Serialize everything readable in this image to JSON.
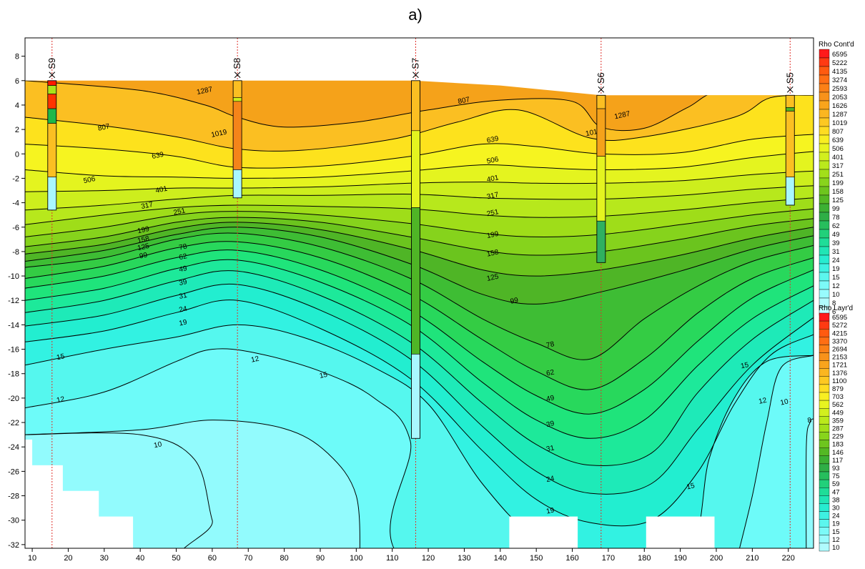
{
  "figure_label": "a)",
  "chart_data": {
    "type": "heatmap",
    "title": "",
    "xlabel": "",
    "ylabel": "",
    "xlim": [
      8,
      227
    ],
    "ylim": [
      -32.3,
      9.5
    ],
    "x_ticks": [
      10,
      20,
      30,
      40,
      50,
      60,
      70,
      80,
      90,
      100,
      110,
      120,
      130,
      140,
      150,
      160,
      170,
      180,
      190,
      200,
      210,
      220
    ],
    "y_ticks": [
      8,
      6,
      4,
      2,
      0,
      -2,
      -4,
      -6,
      -8,
      -10,
      -12,
      -14,
      -16,
      -18,
      -20,
      -22,
      -24,
      -26,
      -28,
      -30,
      -32
    ],
    "grid": false,
    "legend_placement": "right",
    "surface_profile": [
      [
        8,
        6.0
      ],
      [
        66,
        6.0
      ],
      [
        116,
        6.0
      ],
      [
        140,
        5.6
      ],
      [
        168,
        4.8
      ],
      [
        227,
        4.8
      ]
    ],
    "contour_levels": [
      {
        "value": 1287,
        "color": "#f5a21a"
      },
      {
        "value": 1019,
        "color": "#fbbf22"
      },
      {
        "value": 807,
        "color": "#fde21d"
      },
      {
        "value": 639,
        "color": "#f6f420"
      },
      {
        "value": 506,
        "color": "#e4f41f"
      },
      {
        "value": 401,
        "color": "#cdee1d"
      },
      {
        "value": 317,
        "color": "#b7e81c"
      },
      {
        "value": 251,
        "color": "#9fdd19"
      },
      {
        "value": 199,
        "color": "#86d31c"
      },
      {
        "value": 158,
        "color": "#6bc41e"
      },
      {
        "value": 125,
        "color": "#4fb526"
      },
      {
        "value": 99,
        "color": "#3ebd34"
      },
      {
        "value": 78,
        "color": "#34cc44"
      },
      {
        "value": 62,
        "color": "#28d85c"
      },
      {
        "value": 49,
        "color": "#1fe47b"
      },
      {
        "value": 39,
        "color": "#1de99a"
      },
      {
        "value": 31,
        "color": "#1eeab8"
      },
      {
        "value": 24,
        "color": "#22eed0"
      },
      {
        "value": 19,
        "color": "#32f2e2"
      },
      {
        "value": 15,
        "color": "#55f7ee"
      },
      {
        "value": 12,
        "color": "#6dfbf9"
      },
      {
        "value": 10,
        "color": "#92fbfd"
      }
    ],
    "contour_labels": [
      {
        "text": "1287",
        "x": 58,
        "y": 5.0
      },
      {
        "text": "1287",
        "x": 174,
        "y": 3.0
      },
      {
        "text": "1019",
        "x": 62,
        "y": 1.5
      },
      {
        "text": "1019",
        "x": 166,
        "y": 1.6
      },
      {
        "text": "807",
        "x": 30,
        "y": 2.0
      },
      {
        "text": "807",
        "x": 130,
        "y": 4.2
      },
      {
        "text": "639",
        "x": 45,
        "y": -0.3
      },
      {
        "text": "639",
        "x": 138,
        "y": 1.0
      },
      {
        "text": "506",
        "x": 26,
        "y": -2.3
      },
      {
        "text": "506",
        "x": 138,
        "y": -0.7
      },
      {
        "text": "401",
        "x": 46,
        "y": -3.1
      },
      {
        "text": "401",
        "x": 138,
        "y": -2.2
      },
      {
        "text": "317",
        "x": 42,
        "y": -4.4
      },
      {
        "text": "317",
        "x": 138,
        "y": -3.6
      },
      {
        "text": "251",
        "x": 51,
        "y": -4.9
      },
      {
        "text": "251",
        "x": 138,
        "y": -5.0
      },
      {
        "text": "199",
        "x": 41,
        "y": -6.4
      },
      {
        "text": "199",
        "x": 138,
        "y": -6.8
      },
      {
        "text": "158",
        "x": 41,
        "y": -7.2
      },
      {
        "text": "158",
        "x": 138,
        "y": -8.3
      },
      {
        "text": "125",
        "x": 41,
        "y": -7.8
      },
      {
        "text": "125",
        "x": 138,
        "y": -10.3
      },
      {
        "text": "99",
        "x": 41,
        "y": -8.5
      },
      {
        "text": "99",
        "x": 144,
        "y": -12.2
      },
      {
        "text": "78",
        "x": 52,
        "y": -7.8
      },
      {
        "text": "78",
        "x": 154,
        "y": -15.8
      },
      {
        "text": "62",
        "x": 52,
        "y": -8.6
      },
      {
        "text": "62",
        "x": 154,
        "y": -18.1
      },
      {
        "text": "49",
        "x": 52,
        "y": -9.6
      },
      {
        "text": "49",
        "x": 154,
        "y": -20.2
      },
      {
        "text": "39",
        "x": 52,
        "y": -10.7
      },
      {
        "text": "39",
        "x": 154,
        "y": -22.3
      },
      {
        "text": "31",
        "x": 52,
        "y": -11.8
      },
      {
        "text": "31",
        "x": 154,
        "y": -24.3
      },
      {
        "text": "24",
        "x": 52,
        "y": -12.9
      },
      {
        "text": "24",
        "x": 154,
        "y": -26.8
      },
      {
        "text": "19",
        "x": 52,
        "y": -14.0
      },
      {
        "text": "19",
        "x": 154,
        "y": -29.4
      },
      {
        "text": "15",
        "x": 18,
        "y": -16.8
      },
      {
        "text": "15",
        "x": 208,
        "y": -17.5
      },
      {
        "text": "15",
        "x": 193,
        "y": -27.4
      },
      {
        "text": "12",
        "x": 18,
        "y": -20.3
      },
      {
        "text": "12",
        "x": 72,
        "y": -17.0
      },
      {
        "text": "12",
        "x": 213,
        "y": -20.4
      },
      {
        "text": "15",
        "x": 91,
        "y": -18.3
      },
      {
        "text": "10",
        "x": 45,
        "y": -24.0
      },
      {
        "text": "10",
        "x": 219,
        "y": -20.5
      },
      {
        "text": "8",
        "x": 226,
        "y": -22.0
      }
    ],
    "boreholes": [
      {
        "name": "S9",
        "x": 15.5,
        "top": 6.0,
        "bottom": -4.6,
        "segments": [
          {
            "from": 6.0,
            "to": 5.6,
            "color": "#ff1a00"
          },
          {
            "from": 5.6,
            "to": 4.9,
            "color": "#a8e51a"
          },
          {
            "from": 4.9,
            "to": 3.7,
            "color": "#ff3300"
          },
          {
            "from": 3.7,
            "to": 2.5,
            "color": "#1fb84a"
          },
          {
            "from": 2.5,
            "to": -1.9,
            "color": "#fbbf22"
          },
          {
            "from": -1.9,
            "to": -4.6,
            "color": "#a9f7ff"
          }
        ]
      },
      {
        "name": "S8",
        "x": 67.0,
        "top": 6.0,
        "bottom": -3.6,
        "segments": [
          {
            "from": 6.0,
            "to": 4.6,
            "color": "#fbbf22"
          },
          {
            "from": 4.6,
            "to": 4.3,
            "color": "#cdee1d"
          },
          {
            "from": 4.3,
            "to": -1.3,
            "color": "#f5841a"
          },
          {
            "from": -1.3,
            "to": -3.6,
            "color": "#a9f7ff"
          }
        ]
      },
      {
        "name": "S7",
        "x": 116.5,
        "top": 6.0,
        "bottom": -23.3,
        "segments": [
          {
            "from": 6.0,
            "to": 1.9,
            "color": "#fbbf22"
          },
          {
            "from": 1.9,
            "to": -4.4,
            "color": "#e4f41f"
          },
          {
            "from": -4.4,
            "to": -16.4,
            "color": "#4fb526"
          },
          {
            "from": -16.4,
            "to": -23.3,
            "color": "#a9f7ff"
          }
        ]
      },
      {
        "name": "S6",
        "x": 168.0,
        "top": 4.8,
        "bottom": -8.9,
        "segments": [
          {
            "from": 4.8,
            "to": 3.7,
            "color": "#fbbf22"
          },
          {
            "from": 3.7,
            "to": -0.2,
            "color": "#f5a21a"
          },
          {
            "from": -0.2,
            "to": -5.5,
            "color": "#e4f41f"
          },
          {
            "from": -5.5,
            "to": -8.9,
            "color": "#2fb060"
          }
        ]
      },
      {
        "name": "S5",
        "x": 220.5,
        "top": 4.8,
        "bottom": -4.2,
        "segments": [
          {
            "from": 4.8,
            "to": 3.8,
            "color": "#fbbf22"
          },
          {
            "from": 3.8,
            "to": 3.5,
            "color": "#4fb526"
          },
          {
            "from": 3.5,
            "to": -1.9,
            "color": "#fbbf22"
          },
          {
            "from": -1.9,
            "to": -4.2,
            "color": "#a9f7ff"
          }
        ]
      }
    ],
    "legends": [
      {
        "title": "Rho Cont'd",
        "entries": [
          {
            "label": "6595",
            "color": "#ff1a1a"
          },
          {
            "label": "5222",
            "color": "#ff3a12"
          },
          {
            "label": "4135",
            "color": "#ff5a10"
          },
          {
            "label": "3274",
            "color": "#ff6e14"
          },
          {
            "label": "2593",
            "color": "#fb8016"
          },
          {
            "label": "2053",
            "color": "#f8921a"
          },
          {
            "label": "1626",
            "color": "#f9a41c"
          },
          {
            "label": "1287",
            "color": "#fbb620"
          },
          {
            "label": "1019",
            "color": "#fdc822"
          },
          {
            "label": "807",
            "color": "#fedc22"
          },
          {
            "label": "639",
            "color": "#f8ee22"
          },
          {
            "label": "506",
            "color": "#e8f420"
          },
          {
            "label": "401",
            "color": "#d2ef1e"
          },
          {
            "label": "317",
            "color": "#bae91c"
          },
          {
            "label": "251",
            "color": "#a2df1a"
          },
          {
            "label": "199",
            "color": "#88d41c"
          },
          {
            "label": "158",
            "color": "#6ec51e"
          },
          {
            "label": "125",
            "color": "#54b824"
          },
          {
            "label": "99",
            "color": "#3cb033"
          },
          {
            "label": "78",
            "color": "#2fae46"
          },
          {
            "label": "62",
            "color": "#27be5d"
          },
          {
            "label": "49",
            "color": "#22d07a"
          },
          {
            "label": "39",
            "color": "#1fdd98"
          },
          {
            "label": "31",
            "color": "#20e5b5"
          },
          {
            "label": "24",
            "color": "#27ecd0"
          },
          {
            "label": "19",
            "color": "#3ef1e2"
          },
          {
            "label": "15",
            "color": "#5cf6ee"
          },
          {
            "label": "12",
            "color": "#7cfaf8"
          },
          {
            "label": "10",
            "color": "#98fbfd"
          },
          {
            "label": "8",
            "color": "#b0fbfe"
          },
          {
            "label": "6",
            "color": "#c6fcff"
          }
        ]
      },
      {
        "title": "Rho Layr'd",
        "entries": [
          {
            "label": "6595",
            "color": "#ff1a1a"
          },
          {
            "label": "5272",
            "color": "#ff3a12"
          },
          {
            "label": "4215",
            "color": "#ff5a10"
          },
          {
            "label": "3370",
            "color": "#ff6e14"
          },
          {
            "label": "2694",
            "color": "#fb8016"
          },
          {
            "label": "2153",
            "color": "#f8921a"
          },
          {
            "label": "1721",
            "color": "#f9a41c"
          },
          {
            "label": "1376",
            "color": "#fbb620"
          },
          {
            "label": "1100",
            "color": "#fdc822"
          },
          {
            "label": "879",
            "color": "#fedc22"
          },
          {
            "label": "703",
            "color": "#f8ee22"
          },
          {
            "label": "562",
            "color": "#e8f420"
          },
          {
            "label": "449",
            "color": "#d2ef1e"
          },
          {
            "label": "359",
            "color": "#bae91c"
          },
          {
            "label": "287",
            "color": "#a2df1a"
          },
          {
            "label": "229",
            "color": "#88d41c"
          },
          {
            "label": "183",
            "color": "#6ec51e"
          },
          {
            "label": "146",
            "color": "#54b824"
          },
          {
            "label": "117",
            "color": "#3cb033"
          },
          {
            "label": "93",
            "color": "#2fae46"
          },
          {
            "label": "75",
            "color": "#27be5d"
          },
          {
            "label": "59",
            "color": "#22d07a"
          },
          {
            "label": "47",
            "color": "#1fdd98"
          },
          {
            "label": "38",
            "color": "#20e5b5"
          },
          {
            "label": "30",
            "color": "#27ecd0"
          },
          {
            "label": "24",
            "color": "#3ef1e2"
          },
          {
            "label": "19",
            "color": "#5cf6ee"
          },
          {
            "label": "15",
            "color": "#7cfaf8"
          },
          {
            "label": "12",
            "color": "#98fbfd"
          },
          {
            "label": "10",
            "color": "#b0fbfe"
          }
        ]
      }
    ]
  }
}
